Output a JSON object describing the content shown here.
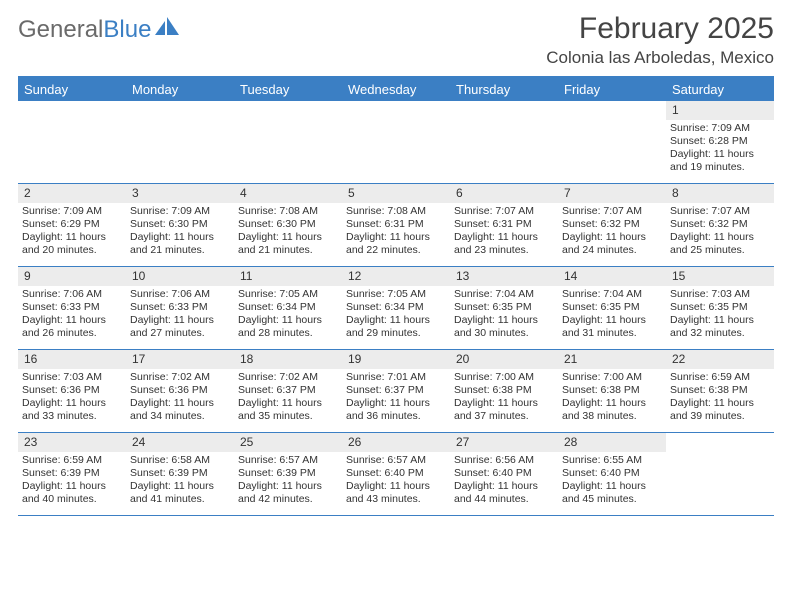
{
  "logo": {
    "text1": "General",
    "text2": "Blue"
  },
  "title": "February 2025",
  "location": "Colonia las Arboledas, Mexico",
  "colors": {
    "accent": "#3b7fc4",
    "headerText": "#ffffff",
    "dayShade": "#ececec",
    "text": "#333333",
    "background": "#ffffff"
  },
  "typography": {
    "titleSize": 30,
    "locationSize": 17,
    "headerSize": 13,
    "cellSize": 10.5
  },
  "dayNames": [
    "Sunday",
    "Monday",
    "Tuesday",
    "Wednesday",
    "Thursday",
    "Friday",
    "Saturday"
  ],
  "weeks": [
    [
      null,
      null,
      null,
      null,
      null,
      null,
      {
        "n": "1",
        "sr": "7:09 AM",
        "ss": "6:28 PM",
        "dl": "11 hours and 19 minutes."
      }
    ],
    [
      {
        "n": "2",
        "sr": "7:09 AM",
        "ss": "6:29 PM",
        "dl": "11 hours and 20 minutes."
      },
      {
        "n": "3",
        "sr": "7:09 AM",
        "ss": "6:30 PM",
        "dl": "11 hours and 21 minutes."
      },
      {
        "n": "4",
        "sr": "7:08 AM",
        "ss": "6:30 PM",
        "dl": "11 hours and 21 minutes."
      },
      {
        "n": "5",
        "sr": "7:08 AM",
        "ss": "6:31 PM",
        "dl": "11 hours and 22 minutes."
      },
      {
        "n": "6",
        "sr": "7:07 AM",
        "ss": "6:31 PM",
        "dl": "11 hours and 23 minutes."
      },
      {
        "n": "7",
        "sr": "7:07 AM",
        "ss": "6:32 PM",
        "dl": "11 hours and 24 minutes."
      },
      {
        "n": "8",
        "sr": "7:07 AM",
        "ss": "6:32 PM",
        "dl": "11 hours and 25 minutes."
      }
    ],
    [
      {
        "n": "9",
        "sr": "7:06 AM",
        "ss": "6:33 PM",
        "dl": "11 hours and 26 minutes."
      },
      {
        "n": "10",
        "sr": "7:06 AM",
        "ss": "6:33 PM",
        "dl": "11 hours and 27 minutes."
      },
      {
        "n": "11",
        "sr": "7:05 AM",
        "ss": "6:34 PM",
        "dl": "11 hours and 28 minutes."
      },
      {
        "n": "12",
        "sr": "7:05 AM",
        "ss": "6:34 PM",
        "dl": "11 hours and 29 minutes."
      },
      {
        "n": "13",
        "sr": "7:04 AM",
        "ss": "6:35 PM",
        "dl": "11 hours and 30 minutes."
      },
      {
        "n": "14",
        "sr": "7:04 AM",
        "ss": "6:35 PM",
        "dl": "11 hours and 31 minutes."
      },
      {
        "n": "15",
        "sr": "7:03 AM",
        "ss": "6:35 PM",
        "dl": "11 hours and 32 minutes."
      }
    ],
    [
      {
        "n": "16",
        "sr": "7:03 AM",
        "ss": "6:36 PM",
        "dl": "11 hours and 33 minutes."
      },
      {
        "n": "17",
        "sr": "7:02 AM",
        "ss": "6:36 PM",
        "dl": "11 hours and 34 minutes."
      },
      {
        "n": "18",
        "sr": "7:02 AM",
        "ss": "6:37 PM",
        "dl": "11 hours and 35 minutes."
      },
      {
        "n": "19",
        "sr": "7:01 AM",
        "ss": "6:37 PM",
        "dl": "11 hours and 36 minutes."
      },
      {
        "n": "20",
        "sr": "7:00 AM",
        "ss": "6:38 PM",
        "dl": "11 hours and 37 minutes."
      },
      {
        "n": "21",
        "sr": "7:00 AM",
        "ss": "6:38 PM",
        "dl": "11 hours and 38 minutes."
      },
      {
        "n": "22",
        "sr": "6:59 AM",
        "ss": "6:38 PM",
        "dl": "11 hours and 39 minutes."
      }
    ],
    [
      {
        "n": "23",
        "sr": "6:59 AM",
        "ss": "6:39 PM",
        "dl": "11 hours and 40 minutes."
      },
      {
        "n": "24",
        "sr": "6:58 AM",
        "ss": "6:39 PM",
        "dl": "11 hours and 41 minutes."
      },
      {
        "n": "25",
        "sr": "6:57 AM",
        "ss": "6:39 PM",
        "dl": "11 hours and 42 minutes."
      },
      {
        "n": "26",
        "sr": "6:57 AM",
        "ss": "6:40 PM",
        "dl": "11 hours and 43 minutes."
      },
      {
        "n": "27",
        "sr": "6:56 AM",
        "ss": "6:40 PM",
        "dl": "11 hours and 44 minutes."
      },
      {
        "n": "28",
        "sr": "6:55 AM",
        "ss": "6:40 PM",
        "dl": "11 hours and 45 minutes."
      },
      null
    ]
  ],
  "labels": {
    "sunrise": "Sunrise:",
    "sunset": "Sunset:",
    "daylight": "Daylight:"
  }
}
